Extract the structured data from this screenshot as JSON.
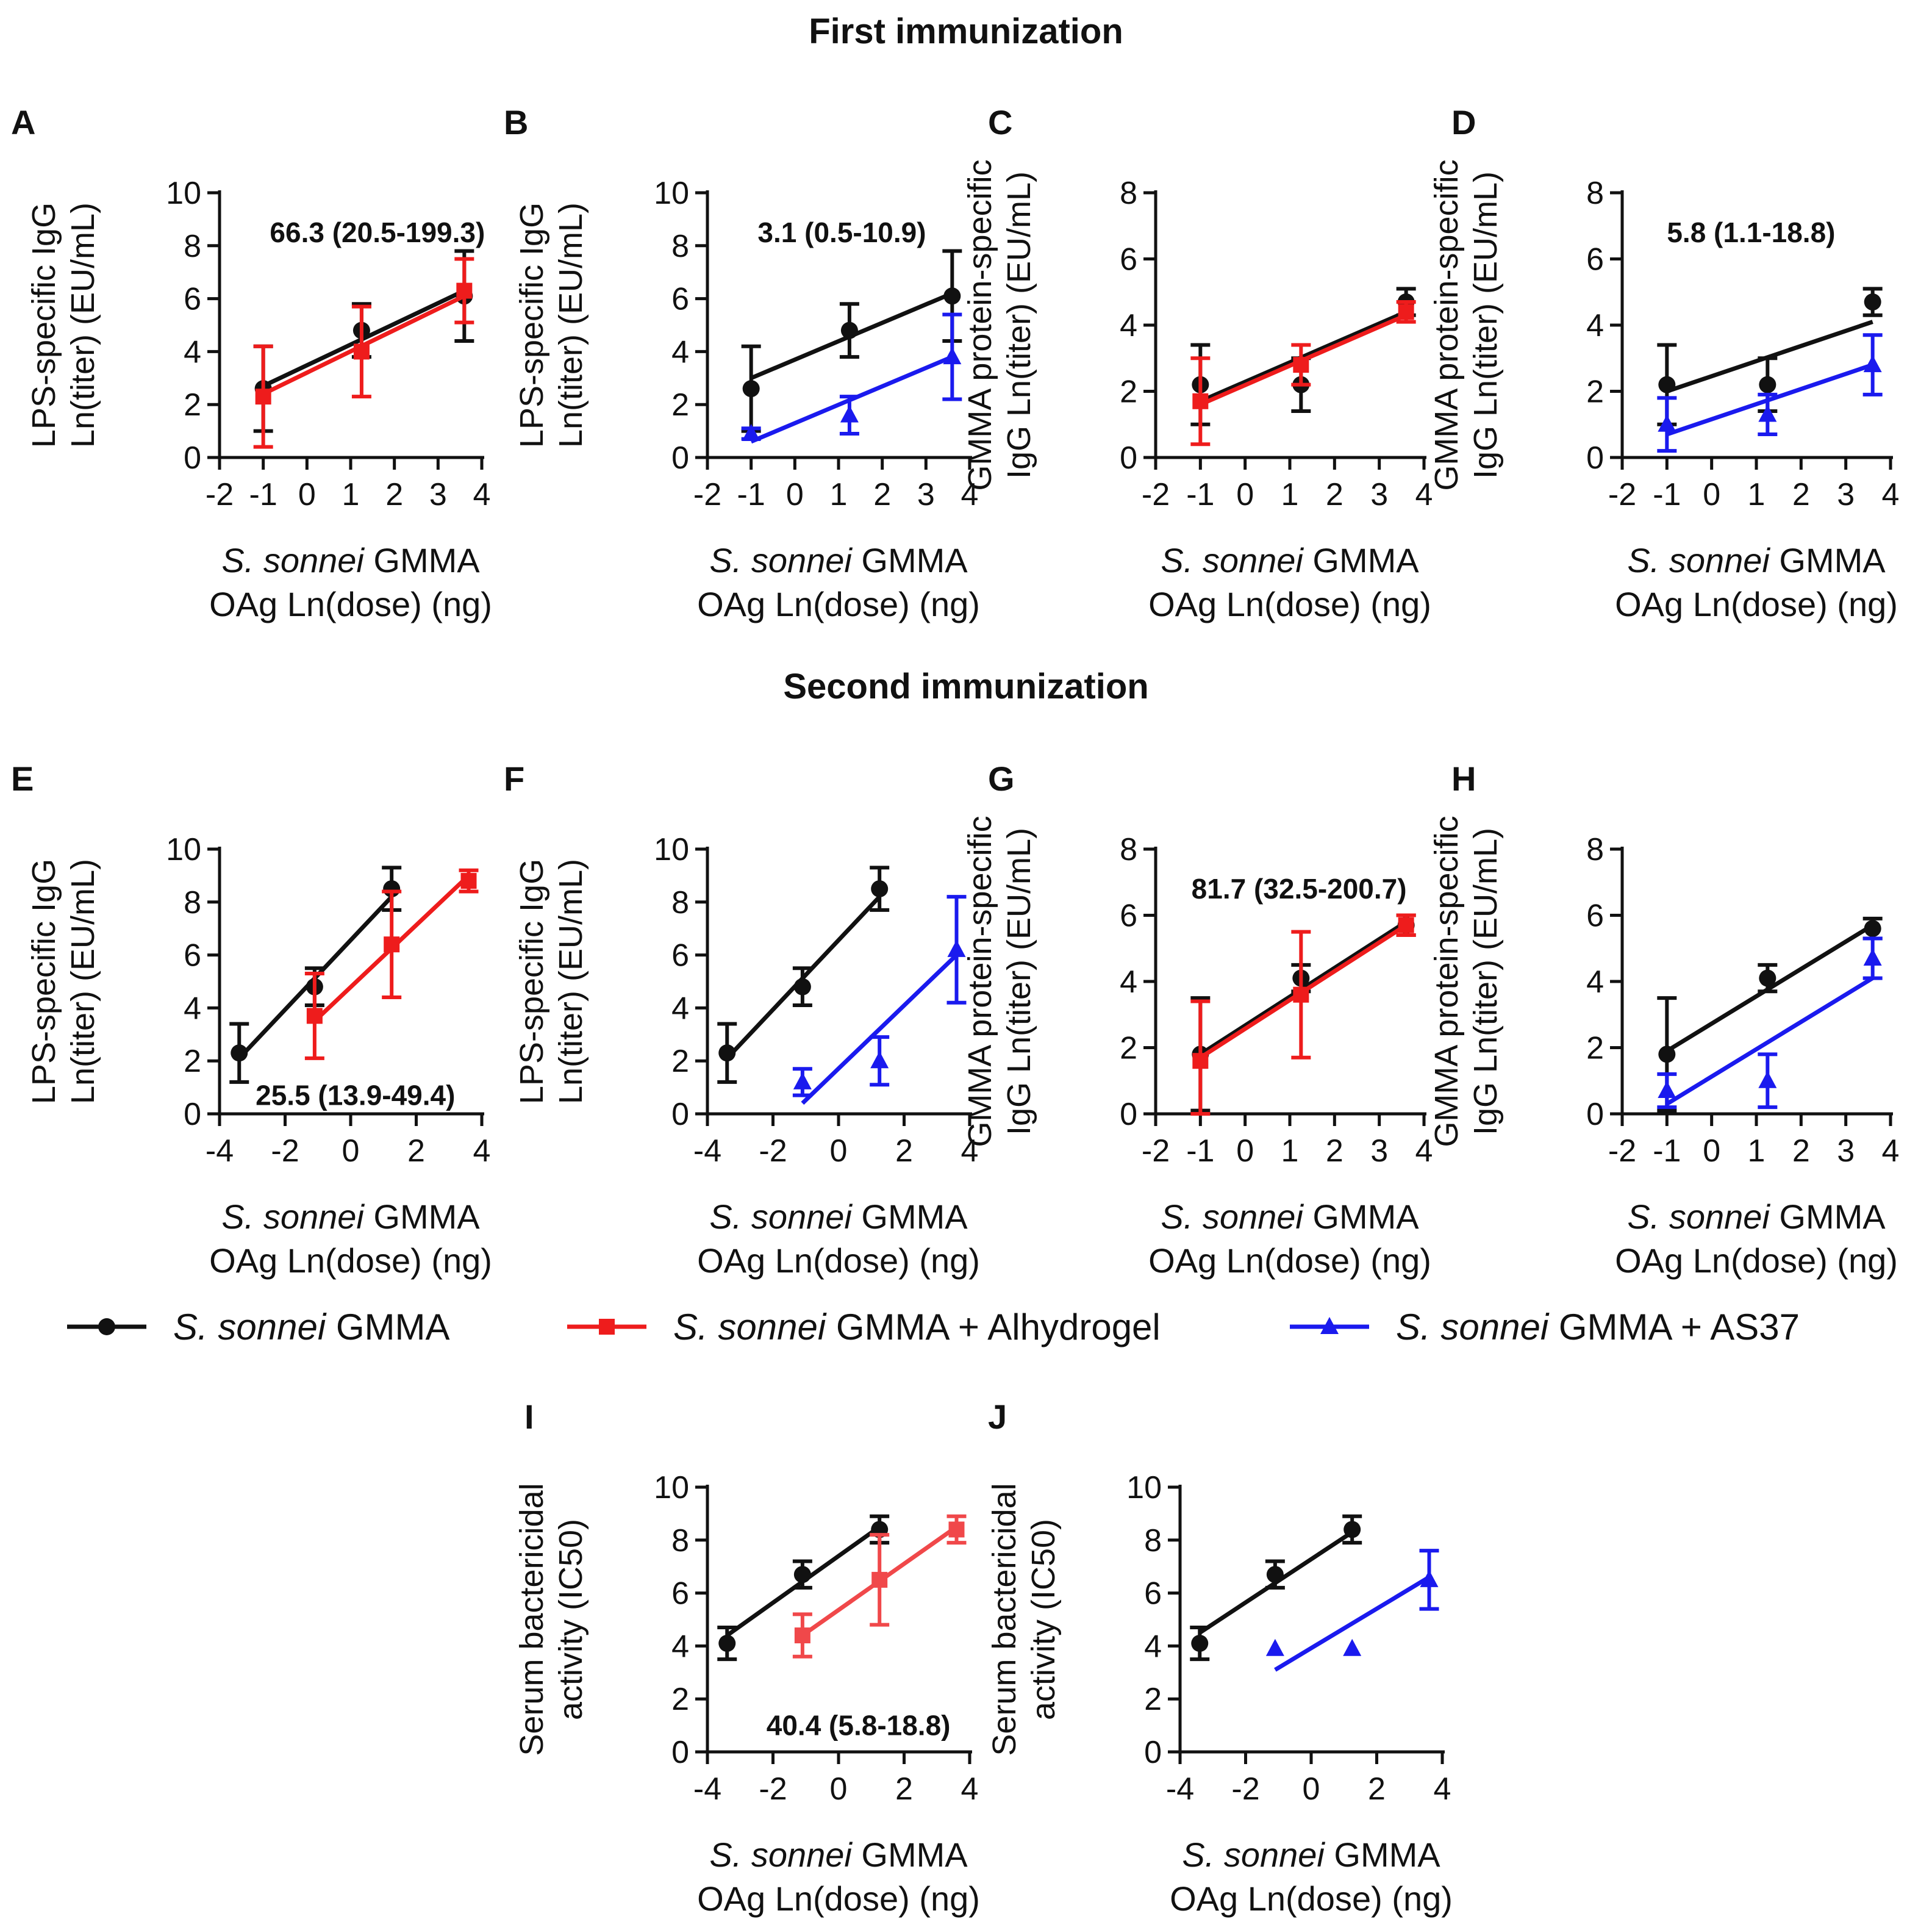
{
  "sections": {
    "first": "First immunization",
    "second": "Second immunization"
  },
  "colors": {
    "gmma": "#111111",
    "alhydrogel": "#ee1c1c",
    "alhydrogel_light": "#f0484a",
    "as37": "#1a1aee"
  },
  "legend": [
    {
      "key": "gmma",
      "marker": "circle",
      "italic": "S. sonnei",
      "rest": " GMMA"
    },
    {
      "key": "alhydrogel",
      "marker": "square",
      "italic": "S. sonnei",
      "rest": " GMMA + Alhydrogel"
    },
    {
      "key": "as37",
      "marker": "triangle",
      "italic": "S. sonnei",
      "rest": " GMMA + AS37"
    }
  ],
  "chart_data": [
    {
      "panel": "A",
      "type": "scatter",
      "ylabel": [
        "LPS-specific IgG",
        "Ln(titer) (EU/mL)"
      ],
      "xlabel_italic": "S. sonnei",
      "xlabel_rest": " GMMA",
      "xlabel_line2": "OAg Ln(dose) (ng)",
      "xlim": [
        -2,
        4
      ],
      "xticks": [
        "-2",
        "-1",
        "0",
        "1",
        "2",
        "3",
        "4"
      ],
      "xtick_values": [
        -2,
        -1,
        0,
        1,
        2,
        3,
        4
      ],
      "ylim": [
        0,
        10
      ],
      "yticks": [
        0,
        2,
        4,
        6,
        8,
        10
      ],
      "annotation": "66.3 (20.5-199.3)",
      "annotation_pos": [
        -0.85,
        8.5
      ],
      "series": [
        {
          "name": "S. sonnei GMMA",
          "color": "gmma",
          "marker": "circle",
          "x": [
            -1,
            1.25,
            3.6
          ],
          "y": [
            2.6,
            4.8,
            6.1
          ],
          "err": [
            1.6,
            1.0,
            1.7
          ],
          "fit": [
            [
              -1,
              2.7
            ],
            [
              3.6,
              6.3
            ]
          ]
        },
        {
          "name": "S. sonnei GMMA + Alhydrogel",
          "color": "alhydrogel",
          "marker": "square",
          "x": [
            -1,
            1.25,
            3.6
          ],
          "y": [
            2.3,
            4.0,
            6.3
          ],
          "err": [
            1.9,
            1.7,
            1.2
          ],
          "fit": [
            [
              -1,
              2.4
            ],
            [
              3.6,
              6.1
            ]
          ]
        }
      ]
    },
    {
      "panel": "B",
      "type": "scatter",
      "ylabel": [
        "LPS-specific IgG",
        "Ln(titer) (EU/mL)"
      ],
      "xlabel_italic": "S. sonnei",
      "xlabel_rest": " GMMA",
      "xlabel_line2": "OAg Ln(dose) (ng)",
      "xlim": [
        -2,
        4
      ],
      "xticks": [
        "-2",
        "-1",
        "0",
        "1",
        "2",
        "3",
        "4"
      ],
      "xtick_values": [
        -2,
        -1,
        0,
        1,
        2,
        3,
        4
      ],
      "ylim": [
        0,
        10
      ],
      "yticks": [
        0,
        2,
        4,
        6,
        8,
        10
      ],
      "annotation": "3.1 (0.5-10.9)",
      "annotation_pos": [
        -0.85,
        8.5
      ],
      "series": [
        {
          "name": "S. sonnei GMMA",
          "color": "gmma",
          "marker": "circle",
          "x": [
            -1,
            1.25,
            3.6
          ],
          "y": [
            2.6,
            4.8,
            6.1
          ],
          "err": [
            1.6,
            1.0,
            1.7
          ],
          "fit": [
            [
              -1,
              3.0
            ],
            [
              3.6,
              6.2
            ]
          ]
        },
        {
          "name": "S. sonnei GMMA + AS37",
          "color": "as37",
          "marker": "triangle",
          "x": [
            -1,
            1.25,
            3.6
          ],
          "y": [
            0.9,
            1.6,
            3.8
          ],
          "err": [
            0.2,
            0.7,
            1.6
          ],
          "fit": [
            [
              -1,
              0.6
            ],
            [
              3.6,
              3.8
            ]
          ]
        }
      ]
    },
    {
      "panel": "C",
      "type": "scatter",
      "ylabel": [
        "GMMA protein-specific",
        "IgG Ln(titer) (EU/mL)"
      ],
      "xlabel_italic": "S. sonnei",
      "xlabel_rest": " GMMA",
      "xlabel_line2": "OAg Ln(dose) (ng)",
      "xlim": [
        -2,
        4
      ],
      "xticks": [
        "-2",
        "-1",
        "0",
        "1",
        "2",
        "3",
        "4"
      ],
      "xtick_values": [
        -2,
        -1,
        0,
        1,
        2,
        3,
        4
      ],
      "ylim": [
        0,
        8
      ],
      "yticks": [
        0,
        2,
        4,
        6,
        8
      ],
      "annotation": "",
      "annotation_pos": [
        0,
        0
      ],
      "series": [
        {
          "name": "S. sonnei GMMA",
          "color": "gmma",
          "marker": "circle",
          "x": [
            -1,
            1.25,
            3.6
          ],
          "y": [
            2.2,
            2.2,
            4.7
          ],
          "err": [
            1.2,
            0.8,
            0.4
          ],
          "fit": [
            [
              -1,
              1.7
            ],
            [
              3.6,
              4.4
            ]
          ]
        },
        {
          "name": "S. sonnei GMMA + Alhydrogel",
          "color": "alhydrogel",
          "marker": "square",
          "x": [
            -1,
            1.25,
            3.6
          ],
          "y": [
            1.7,
            2.8,
            4.4
          ],
          "err": [
            1.3,
            0.6,
            0.3
          ],
          "fit": [
            [
              -1,
              1.6
            ],
            [
              3.6,
              4.3
            ]
          ]
        }
      ]
    },
    {
      "panel": "D",
      "type": "scatter",
      "ylabel": [
        "GMMA protein-specific",
        "IgG Ln(titer) (EU/mL)"
      ],
      "xlabel_italic": "S. sonnei",
      "xlabel_rest": " GMMA",
      "xlabel_line2": "OAg Ln(dose) (ng)",
      "xlim": [
        -2,
        4
      ],
      "xticks": [
        "-2",
        "-1",
        "0",
        "1",
        "2",
        "3",
        "4"
      ],
      "xtick_values": [
        -2,
        -1,
        0,
        1,
        2,
        3,
        4
      ],
      "ylim": [
        0,
        8
      ],
      "yticks": [
        0,
        2,
        4,
        6,
        8
      ],
      "annotation": "5.8 (1.1-18.8)",
      "annotation_pos": [
        -1.0,
        6.8
      ],
      "series": [
        {
          "name": "S. sonnei GMMA",
          "color": "gmma",
          "marker": "circle",
          "x": [
            -1,
            1.25,
            3.6
          ],
          "y": [
            2.2,
            2.2,
            4.7
          ],
          "err": [
            1.2,
            0.8,
            0.4
          ],
          "fit": [
            [
              -1,
              2.0
            ],
            [
              3.6,
              4.1
            ]
          ]
        },
        {
          "name": "S. sonnei GMMA + AS37",
          "color": "as37",
          "marker": "triangle",
          "x": [
            -1,
            1.25,
            3.6
          ],
          "y": [
            1.0,
            1.3,
            2.8
          ],
          "err": [
            0.8,
            0.6,
            0.9
          ],
          "fit": [
            [
              -1,
              0.7
            ],
            [
              3.6,
              2.8
            ]
          ]
        }
      ]
    },
    {
      "panel": "E",
      "type": "scatter",
      "ylabel": [
        "LPS-specific IgG",
        "Ln(titer) (EU/mL)"
      ],
      "xlabel_italic": "S. sonnei",
      "xlabel_rest": " GMMA",
      "xlabel_line2": "OAg Ln(dose) (ng)",
      "xlim": [
        -4,
        4
      ],
      "xticks": [
        "-4",
        "-2",
        "0",
        "2",
        "4"
      ],
      "xtick_values": [
        -4,
        -2,
        0,
        2,
        4
      ],
      "ylim": [
        0,
        10
      ],
      "yticks": [
        0,
        2,
        4,
        6,
        8,
        10
      ],
      "annotation": "25.5 (13.9-49.4)",
      "annotation_pos": [
        -2.9,
        0.7
      ],
      "series": [
        {
          "name": "S. sonnei GMMA",
          "color": "gmma",
          "marker": "circle",
          "x": [
            -3.4,
            -1.1,
            1.25
          ],
          "y": [
            2.3,
            4.8,
            8.5
          ],
          "err": [
            1.1,
            0.7,
            0.8
          ],
          "fit": [
            [
              -3.4,
              2.1
            ],
            [
              1.25,
              8.2
            ]
          ]
        },
        {
          "name": "S. sonnei GMMA + Alhydrogel",
          "color": "alhydrogel",
          "marker": "square",
          "x": [
            -1.1,
            1.25,
            3.6
          ],
          "y": [
            3.7,
            6.4,
            8.8
          ],
          "err": [
            1.6,
            2.0,
            0.4
          ],
          "fit": [
            [
              -1.1,
              3.5
            ],
            [
              3.6,
              9.0
            ]
          ]
        }
      ]
    },
    {
      "panel": "F",
      "type": "scatter",
      "ylabel": [
        "LPS-specific IgG",
        "Ln(titer) (EU/mL)"
      ],
      "xlabel_italic": "S. sonnei",
      "xlabel_rest": " GMMA",
      "xlabel_line2": "OAg Ln(dose) (ng)",
      "xlim": [
        -4,
        4
      ],
      "xticks": [
        "-4",
        "-2",
        "0",
        "2",
        "4"
      ],
      "xtick_values": [
        -4,
        -2,
        0,
        2,
        4
      ],
      "ylim": [
        0,
        10
      ],
      "yticks": [
        0,
        2,
        4,
        6,
        8,
        10
      ],
      "annotation": "",
      "annotation_pos": [
        0,
        0
      ],
      "series": [
        {
          "name": "S. sonnei GMMA",
          "color": "gmma",
          "marker": "circle",
          "x": [
            -3.4,
            -1.1,
            1.25
          ],
          "y": [
            2.3,
            4.8,
            8.5
          ],
          "err": [
            1.1,
            0.7,
            0.8
          ],
          "fit": [
            [
              -3.4,
              2.1
            ],
            [
              1.25,
              8.2
            ]
          ]
        },
        {
          "name": "S. sonnei GMMA + AS37",
          "color": "as37",
          "marker": "triangle",
          "x": [
            -1.1,
            1.25,
            3.6
          ],
          "y": [
            1.2,
            2.0,
            6.2
          ],
          "err": [
            0.5,
            0.9,
            2.0
          ],
          "fit": [
            [
              -1.1,
              0.4
            ],
            [
              3.6,
              6.0
            ]
          ]
        }
      ]
    },
    {
      "panel": "G",
      "type": "scatter",
      "ylabel": [
        "GMMA protein-specific",
        "IgG Ln(titer) (EU/mL)"
      ],
      "xlabel_italic": "S. sonnei",
      "xlabel_rest": " GMMA",
      "xlabel_line2": "OAg Ln(dose) (ng)",
      "xlim": [
        -2,
        4
      ],
      "xticks": [
        "-2",
        "-1",
        "0",
        "1",
        "2",
        "3",
        "4"
      ],
      "xtick_values": [
        -2,
        -1,
        0,
        1,
        2,
        3,
        4
      ],
      "ylim": [
        0,
        8
      ],
      "yticks": [
        0,
        2,
        4,
        6,
        8
      ],
      "annotation": "81.7 (32.5-200.7)",
      "annotation_pos": [
        -1.2,
        6.8
      ],
      "series": [
        {
          "name": "S. sonnei GMMA",
          "color": "gmma",
          "marker": "circle",
          "x": [
            -1,
            1.25,
            3.6
          ],
          "y": [
            1.8,
            4.1,
            5.7
          ],
          "err": [
            1.7,
            0.4,
            0.3
          ],
          "fit": [
            [
              -1,
              1.8
            ],
            [
              3.6,
              5.8
            ]
          ]
        },
        {
          "name": "S. sonnei GMMA + Alhydrogel",
          "color": "alhydrogel",
          "marker": "square",
          "x": [
            -1,
            1.25,
            3.6
          ],
          "y": [
            1.6,
            3.6,
            5.7
          ],
          "err": [
            1.8,
            1.9,
            0.3
          ],
          "fit": [
            [
              -1,
              1.7
            ],
            [
              3.6,
              5.7
            ]
          ]
        }
      ]
    },
    {
      "panel": "H",
      "type": "scatter",
      "ylabel": [
        "GMMA protein-specific",
        "IgG Ln(titer) (EU/mL)"
      ],
      "xlabel_italic": "S. sonnei",
      "xlabel_rest": " GMMA",
      "xlabel_line2": "OAg Ln(dose) (ng)",
      "xlim": [
        -2,
        4
      ],
      "xticks": [
        "-2",
        "-1",
        "0",
        "1",
        "2",
        "3",
        "4"
      ],
      "xtick_values": [
        -2,
        -1,
        0,
        1,
        2,
        3,
        4
      ],
      "ylim": [
        0,
        8
      ],
      "yticks": [
        0,
        2,
        4,
        6,
        8
      ],
      "annotation": "",
      "annotation_pos": [
        0,
        0
      ],
      "series": [
        {
          "name": "S. sonnei GMMA",
          "color": "gmma",
          "marker": "circle",
          "x": [
            -1,
            1.25,
            3.6
          ],
          "y": [
            1.8,
            4.1,
            5.6
          ],
          "err": [
            1.7,
            0.4,
            0.3
          ],
          "fit": [
            [
              -1,
              1.9
            ],
            [
              3.6,
              5.7
            ]
          ]
        },
        {
          "name": "S. sonnei GMMA + AS37",
          "color": "as37",
          "marker": "triangle",
          "x": [
            -1,
            1.25,
            3.6
          ],
          "y": [
            0.7,
            1.0,
            4.7
          ],
          "err": [
            0.5,
            0.8,
            0.6
          ],
          "fit": [
            [
              -1,
              0.3
            ],
            [
              3.6,
              4.1
            ]
          ]
        }
      ]
    },
    {
      "panel": "I",
      "type": "scatter",
      "ylabel": [
        "Serum bactericidal",
        "activity (IC50)"
      ],
      "xlabel_italic": "S. sonnei",
      "xlabel_rest": " GMMA",
      "xlabel_line2": "OAg Ln(dose) (ng)",
      "xlim": [
        -4,
        4
      ],
      "xticks": [
        "-4",
        "-2",
        "0",
        "2",
        "4"
      ],
      "xtick_values": [
        -4,
        -2,
        0,
        2,
        4
      ],
      "ylim": [
        0,
        10
      ],
      "yticks": [
        0,
        2,
        4,
        6,
        8,
        10
      ],
      "annotation": "40.4 (5.8-18.8)",
      "annotation_pos": [
        -2.2,
        1.0
      ],
      "series": [
        {
          "name": "S. sonnei GMMA",
          "color": "gmma",
          "marker": "circle",
          "x": [
            -3.4,
            -1.1,
            1.25
          ],
          "y": [
            4.1,
            6.7,
            8.4
          ],
          "err": [
            0.6,
            0.5,
            0.5
          ],
          "fit": [
            [
              -3.4,
              4.4
            ],
            [
              1.25,
              8.5
            ]
          ]
        },
        {
          "name": "S. sonnei GMMA + Alhydrogel",
          "color": "alhydrogel_light",
          "marker": "square",
          "x": [
            -1.1,
            1.25,
            3.6
          ],
          "y": [
            4.4,
            6.5,
            8.4
          ],
          "err": [
            0.8,
            1.7,
            0.5
          ],
          "fit": [
            [
              -1.1,
              4.4
            ],
            [
              3.6,
              8.5
            ]
          ]
        }
      ]
    },
    {
      "panel": "J",
      "type": "scatter",
      "ylabel": [
        "Serum bactericidal",
        "activity (IC50)"
      ],
      "xlabel_italic": "S. sonnei",
      "xlabel_rest": " GMMA",
      "xlabel_line2": "OAg Ln(dose) (ng)",
      "xlim": [
        -4,
        4
      ],
      "xticks": [
        "-4",
        "-2",
        "0",
        "2",
        "4"
      ],
      "xtick_values": [
        -4,
        -2,
        0,
        2,
        4
      ],
      "ylim": [
        0,
        10
      ],
      "yticks": [
        0,
        2,
        4,
        6,
        8,
        10
      ],
      "annotation": "",
      "annotation_pos": [
        0,
        0
      ],
      "series": [
        {
          "name": "S. sonnei GMMA",
          "color": "gmma",
          "marker": "circle",
          "x": [
            -3.4,
            -1.1,
            1.25
          ],
          "y": [
            4.1,
            6.7,
            8.4
          ],
          "err": [
            0.6,
            0.5,
            0.5
          ],
          "fit": [
            [
              -3.4,
              4.5
            ],
            [
              1.25,
              8.3
            ]
          ]
        },
        {
          "name": "S. sonnei GMMA + AS37",
          "color": "as37",
          "marker": "triangle",
          "x": [
            -1.1,
            1.25,
            3.6
          ],
          "y": [
            3.9,
            3.9,
            6.5
          ],
          "err": [
            0.0,
            0.0,
            1.1
          ],
          "fit": [
            [
              -1.1,
              3.1
            ],
            [
              3.6,
              6.6
            ]
          ]
        }
      ]
    }
  ]
}
